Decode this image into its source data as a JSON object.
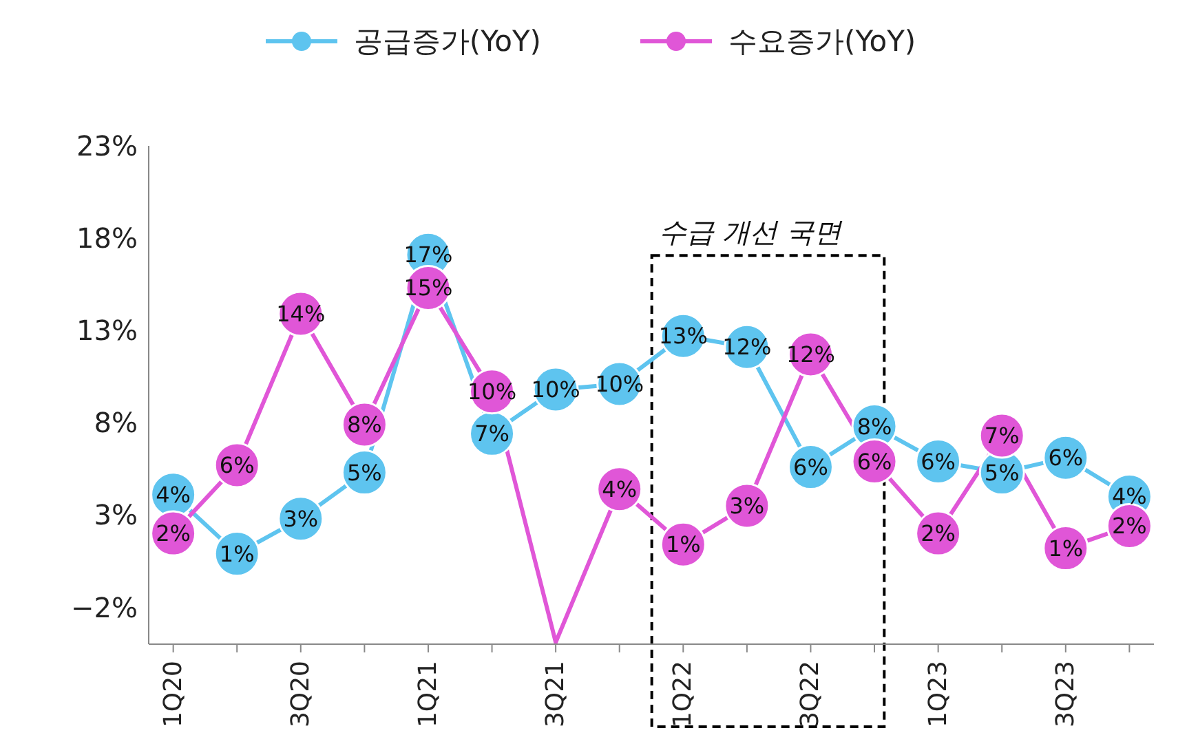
{
  "chart_data": {
    "type": "line",
    "categories": [
      "1Q20",
      null,
      "3Q20",
      null,
      "1Q21",
      null,
      "3Q21",
      null,
      "1Q22",
      null,
      "3Q22",
      null,
      "1Q23",
      null,
      "3Q23",
      null
    ],
    "series": [
      {
        "name": "공급증가(YoY)",
        "color": "#5ec4ef",
        "values": [
          4.1,
          0.9,
          2.8,
          5.3,
          17.1,
          7.4,
          9.8,
          10.1,
          12.7,
          12.1,
          5.6,
          7.8,
          5.9,
          5.3,
          6.1,
          4.0
        ],
        "value_labels": [
          "4%",
          "1%",
          "3%",
          "5%",
          "17%",
          "7%",
          "10%",
          "10%",
          "13%",
          "12%",
          "6%",
          "8%",
          "6%",
          "5%",
          "6%",
          "4%"
        ]
      },
      {
        "name": "수요증가(YoY)",
        "color": "#e056d7",
        "values": [
          2.0,
          5.7,
          13.9,
          7.9,
          15.3,
          9.7,
          -3.9,
          4.4,
          1.4,
          3.5,
          11.7,
          5.9,
          2.0,
          7.3,
          1.2,
          2.4
        ],
        "value_labels": [
          "2%",
          "6%",
          "14%",
          "8%",
          "15%",
          "10%",
          null,
          "4%",
          "1%",
          "3%",
          "12%",
          "6%",
          "2%",
          "7%",
          "1%",
          "2%"
        ]
      }
    ],
    "ylim": [
      -4,
      23
    ],
    "yticks": [
      {
        "value": -2,
        "label": "−2%"
      },
      {
        "value": 3,
        "label": "3%"
      },
      {
        "value": 8,
        "label": "8%"
      },
      {
        "value": 13,
        "label": "13%"
      },
      {
        "value": 18,
        "label": "18%"
      },
      {
        "value": 23,
        "label": "23%"
      }
    ],
    "annotations": [
      "수급 개선 국면"
    ],
    "legend": "top",
    "marker": "circle",
    "grid": false
  }
}
